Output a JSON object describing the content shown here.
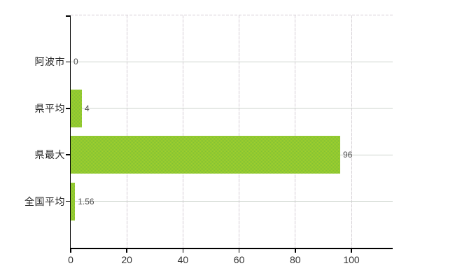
{
  "chart_data": {
    "type": "bar",
    "orientation": "horizontal",
    "title": "",
    "xlabel": "",
    "ylabel": "",
    "categories": [
      "阿波市",
      "県平均",
      "県最大",
      "全国平均"
    ],
    "values": [
      0,
      4,
      96,
      1.56
    ],
    "value_labels": [
      "0",
      "4",
      "96",
      "1.56"
    ],
    "x_ticks": [
      0,
      20,
      40,
      60,
      80,
      100
    ],
    "x_tick_labels": [
      "0",
      "20",
      "40",
      "60",
      "80",
      "100"
    ],
    "xlim": [
      0,
      114.7
    ],
    "grid": true,
    "legend": false,
    "colors": {
      "bar": "#95c931",
      "bar_dither_light": "#a4d02b",
      "bar_dither_dark": "#7fc136",
      "axis": "#000000",
      "h_gridline": "#ccd3cc",
      "v_gridline": "#d4ced4",
      "top_border": "#d4ccd4",
      "category_label": "#262626",
      "value_label": "#4d4d4d",
      "tick_label": "#333333",
      "background": "#ffffff"
    }
  }
}
